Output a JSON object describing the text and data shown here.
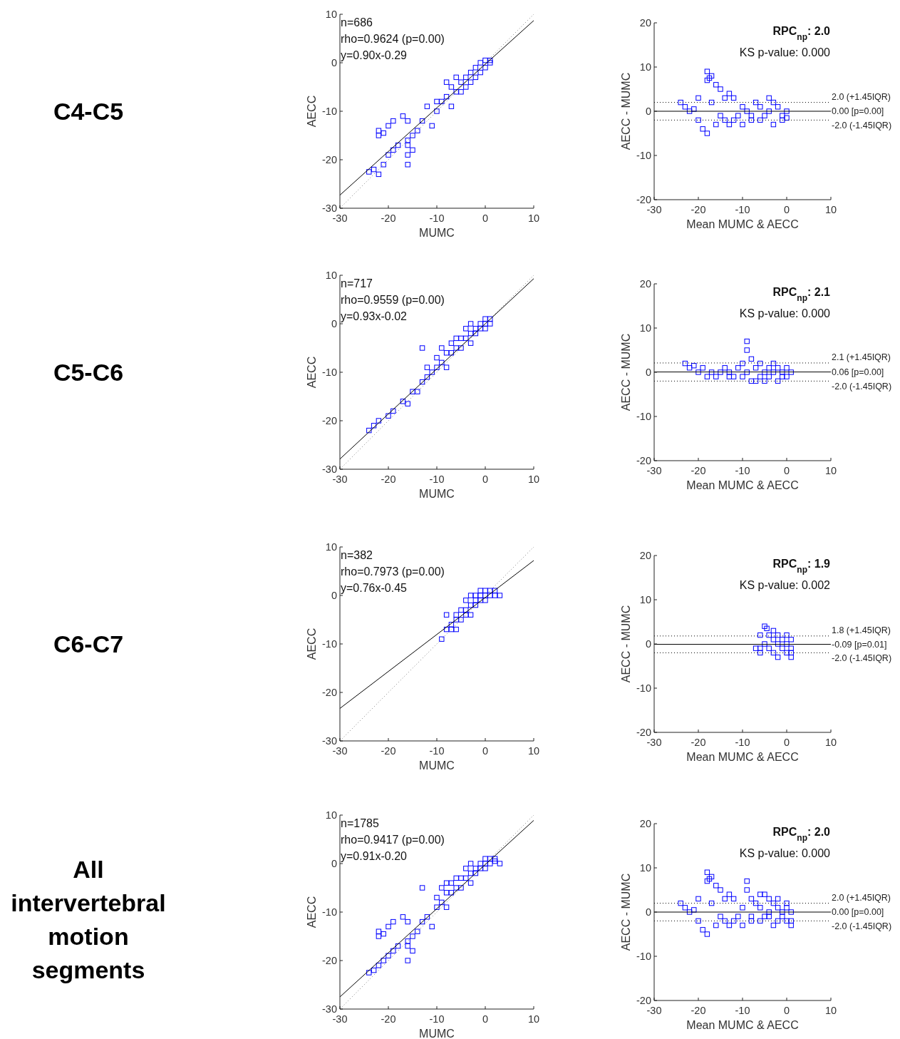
{
  "chart_data": [
    {
      "type": "other",
      "title": "C4-C5"
    },
    {
      "type": "scatter",
      "xlabel": "MUMC",
      "ylabel": "AECC",
      "xlim": [
        -30,
        10
      ],
      "ylim": [
        -30,
        10
      ],
      "xticks": [
        -30,
        -20,
        -10,
        0,
        10
      ],
      "yticks": [
        -30,
        -20,
        -10,
        0,
        10
      ],
      "annotations": [
        "n=686",
        "rho=0.9624 (p=0.00)",
        "y=0.90x-0.29"
      ],
      "series": [
        {
          "type": "scatter",
          "marker": "square",
          "color": "#0000ff",
          "x": [
            -23,
            -24,
            -22,
            -21,
            -20,
            -19,
            -18,
            -22,
            -22,
            -21,
            -20,
            -19,
            -17,
            -16,
            -15,
            -16,
            -16,
            -15,
            -16,
            -16,
            -14,
            -13,
            -11,
            -10,
            -9,
            -8,
            -7,
            -6,
            -5,
            -4,
            -3,
            -2,
            -1,
            0,
            1,
            -3,
            -5,
            -6,
            -8,
            -10,
            -12,
            -1,
            0,
            -2,
            -4,
            -7,
            1
          ],
          "values": [
            -22,
            -22.5,
            -23,
            -21,
            -19,
            -18,
            -17,
            -15,
            -14,
            -14.5,
            -13,
            -12,
            -11,
            -12,
            -15,
            -16,
            -17,
            -18,
            -19,
            -21,
            -14,
            -12,
            -13,
            -10,
            -8,
            -7,
            -9,
            -6,
            -4,
            -3,
            -2,
            -1,
            0,
            0.5,
            0,
            -4,
            -6,
            -3,
            -4,
            -8,
            -9,
            -2,
            -1,
            -3,
            -5,
            -5,
            0.5
          ]
        },
        {
          "type": "line",
          "color": "#000000",
          "line_style": "solid",
          "x": [
            -30,
            10
          ],
          "values": [
            -27.3,
            8.7
          ]
        },
        {
          "type": "line",
          "color": "#808080",
          "line_style": "dotted",
          "x": [
            -30,
            10
          ],
          "values": [
            -30,
            10
          ]
        }
      ]
    },
    {
      "type": "scatter",
      "xlabel": "Mean MUMC & AECC",
      "ylabel": "AECC - MUMC",
      "xlim": [
        -30,
        10
      ],
      "ylim": [
        -20,
        20
      ],
      "xticks": [
        -30,
        -20,
        -10,
        0,
        10
      ],
      "yticks": [
        -20,
        -10,
        0,
        10,
        20
      ],
      "annotations": [
        "RPC$_{np}$: 2.0",
        "KS p-value: 0.000"
      ],
      "ref_lines": [
        {
          "axis": "y",
          "value": 2.0,
          "label": "2.0 (+1.45IQR)",
          "line_style": "dotted",
          "color": "#000000"
        },
        {
          "axis": "y",
          "value": 0.0,
          "label": "0.00 [p=0.00]",
          "line_style": "solid",
          "color": "#000000"
        },
        {
          "axis": "y",
          "value": -2.0,
          "label": "-2.0 (-1.45IQR)",
          "line_style": "dotted",
          "color": "#000000"
        }
      ],
      "series": [
        {
          "type": "scatter",
          "marker": "square",
          "color": "#0000ff",
          "x": [
            -24,
            -23,
            -22,
            -21,
            -20,
            -19,
            -18,
            -18,
            -17.5,
            -18,
            -17,
            -16,
            -15,
            -14,
            -13,
            -12,
            -20,
            -17,
            -15,
            -14,
            -13,
            -12,
            -11,
            -10,
            -9,
            -8,
            -7,
            -6,
            -5,
            -4,
            -3,
            -2,
            -1,
            0,
            -1,
            -8,
            -6,
            -4,
            -3,
            0,
            -16,
            -10
          ],
          "values": [
            2,
            1,
            0,
            0.5,
            -2,
            -4,
            -5,
            7,
            7.5,
            9,
            8,
            6,
            5,
            3,
            4,
            3,
            3,
            2,
            -1,
            -2,
            -3,
            -2,
            -1,
            1,
            0,
            -1,
            2,
            1,
            -1,
            0,
            2,
            1,
            -1,
            0,
            -2,
            -2,
            -2,
            3,
            -3,
            -1.5,
            -3,
            -3
          ]
        }
      ]
    },
    {
      "type": "other",
      "title": "C5-C6"
    },
    {
      "type": "scatter",
      "xlabel": "MUMC",
      "ylabel": "AECC",
      "xlim": [
        -30,
        10
      ],
      "ylim": [
        -30,
        10
      ],
      "xticks": [
        -30,
        -20,
        -10,
        0,
        10
      ],
      "yticks": [
        -30,
        -20,
        -10,
        0,
        10
      ],
      "annotations": [
        "n=717",
        "rho=0.9559 (p=0.00)",
        "y=0.93x-0.02"
      ],
      "series": [
        {
          "type": "scatter",
          "marker": "square",
          "color": "#0000ff",
          "x": [
            -24,
            -23,
            -22,
            -20,
            -19,
            -17,
            -16,
            -15,
            -14,
            -13,
            -12,
            -12,
            -11,
            -10,
            -10,
            -9,
            -8,
            -8,
            -7,
            -6,
            -6,
            -5,
            -5,
            -4,
            -3,
            -3,
            -2,
            -2,
            -1,
            -1,
            0,
            0,
            1,
            1,
            -4,
            -7,
            -13,
            -9,
            -3,
            0
          ],
          "values": [
            -22,
            -21,
            -20,
            -19,
            -18,
            -16,
            -16.5,
            -14,
            -14,
            -12,
            -11,
            -9,
            -10,
            -9,
            -7,
            -8,
            -6,
            -9,
            -6,
            -5,
            -3,
            -5,
            -3,
            -3,
            -2,
            -4,
            -1,
            -2,
            0,
            -1,
            0,
            1,
            0,
            1,
            -1,
            -4,
            -5,
            -5,
            0,
            -1
          ]
        },
        {
          "type": "line",
          "color": "#000000",
          "line_style": "solid",
          "x": [
            -30,
            10
          ],
          "values": [
            -27.9,
            9.3
          ]
        },
        {
          "type": "line",
          "color": "#808080",
          "line_style": "dotted",
          "x": [
            -30,
            10
          ],
          "values": [
            -30,
            10
          ]
        }
      ]
    },
    {
      "type": "scatter",
      "xlabel": "Mean MUMC & AECC",
      "ylabel": "AECC - MUMC",
      "xlim": [
        -30,
        10
      ],
      "ylim": [
        -20,
        20
      ],
      "xticks": [
        -30,
        -20,
        -10,
        0,
        10
      ],
      "yticks": [
        -20,
        -10,
        0,
        10,
        20
      ],
      "annotations": [
        "RPC$_{np}$: 2.1",
        "KS p-value: 0.000"
      ],
      "ref_lines": [
        {
          "axis": "y",
          "value": 2.1,
          "label": "2.1 (+1.45IQR)",
          "line_style": "dotted",
          "color": "#000000"
        },
        {
          "axis": "y",
          "value": 0.06,
          "label": "0.06 [p=0.00]",
          "line_style": "solid",
          "color": "#000000"
        },
        {
          "axis": "y",
          "value": -2.0,
          "label": "-2.0 (-1.45IQR)",
          "line_style": "dotted",
          "color": "#000000"
        }
      ],
      "series": [
        {
          "type": "scatter",
          "marker": "square",
          "color": "#0000ff",
          "x": [
            -23,
            -22,
            -21,
            -20,
            -19,
            -18,
            -17,
            -16,
            -15,
            -14,
            -13,
            -12,
            -11,
            -10,
            -9,
            -9,
            -8,
            -9,
            -8,
            -7,
            -6,
            -6,
            -5,
            -5,
            -4,
            -4,
            -3,
            -3,
            -2,
            -2,
            -1,
            -1,
            0,
            0,
            1,
            -7,
            -10,
            -13
          ],
          "values": [
            2,
            1,
            1.5,
            0,
            1,
            -1,
            0,
            -1,
            0,
            1,
            0,
            -1,
            1,
            2,
            7,
            5,
            3,
            0,
            -2,
            1,
            -1,
            2,
            0,
            -2,
            1,
            -1,
            2,
            0,
            -2,
            1,
            0,
            -1,
            1,
            -1,
            0,
            -2,
            -1,
            -1
          ]
        }
      ]
    },
    {
      "type": "other",
      "title": "C6-C7"
    },
    {
      "type": "scatter",
      "xlabel": "MUMC",
      "ylabel": "AECC",
      "xlim": [
        -30,
        10
      ],
      "ylim": [
        -30,
        10
      ],
      "xticks": [
        -30,
        -20,
        -10,
        0,
        10
      ],
      "yticks": [
        -30,
        -20,
        -10,
        0,
        10
      ],
      "annotations": [
        "n=382",
        "rho=0.7973 (p=0.00)",
        "y=0.76x-0.45"
      ],
      "series": [
        {
          "type": "scatter",
          "marker": "square",
          "color": "#0000ff",
          "x": [
            -9,
            -8,
            -8,
            -7,
            -7,
            -6,
            -6,
            -5,
            -5,
            -4,
            -4,
            -3,
            -3,
            -2,
            -2,
            -1,
            -1,
            0,
            0,
            1,
            1,
            2,
            3,
            -6,
            -3,
            -2,
            0,
            -1,
            2,
            -4
          ],
          "values": [
            -9,
            -7,
            -4,
            -6,
            -7,
            -5,
            -4,
            -3,
            -5,
            -3,
            -1,
            -2,
            -4,
            -1,
            0,
            0,
            -1,
            0,
            1,
            0,
            1,
            0,
            0,
            -7,
            0,
            -2,
            -1,
            1,
            1,
            -4
          ]
        },
        {
          "type": "line",
          "color": "#000000",
          "line_style": "solid",
          "x": [
            -30,
            10
          ],
          "values": [
            -23.3,
            7.2
          ]
        },
        {
          "type": "line",
          "color": "#808080",
          "line_style": "dotted",
          "x": [
            -30,
            10
          ],
          "values": [
            -30,
            10
          ]
        }
      ]
    },
    {
      "type": "scatter",
      "xlabel": "Mean MUMC & AECC",
      "ylabel": "AECC - MUMC",
      "xlim": [
        -30,
        10
      ],
      "ylim": [
        -20,
        20
      ],
      "xticks": [
        -30,
        -20,
        -10,
        0,
        10
      ],
      "yticks": [
        -20,
        -10,
        0,
        10,
        20
      ],
      "annotations": [
        "RPC$_{np}$: 1.9",
        "KS p-value: 0.002"
      ],
      "ref_lines": [
        {
          "axis": "y",
          "value": 1.8,
          "label": "1.8 (+1.45IQR)",
          "line_style": "dotted",
          "color": "#000000"
        },
        {
          "axis": "y",
          "value": -0.09,
          "label": "-0.09 [p=0.01]",
          "line_style": "solid",
          "color": "#000000"
        },
        {
          "axis": "y",
          "value": -2.0,
          "label": "-2.0 (-1.45IQR)",
          "line_style": "dotted",
          "color": "#000000"
        }
      ],
      "series": [
        {
          "type": "scatter",
          "marker": "square",
          "color": "#0000ff",
          "x": [
            -7,
            -6,
            -6,
            -5,
            -4.5,
            -5,
            -4,
            -4,
            -3,
            -3,
            -2,
            -2,
            -1,
            -1,
            0,
            0,
            1,
            1,
            1,
            -3,
            -6,
            -2,
            0,
            1
          ],
          "values": [
            -1,
            2,
            -2,
            4,
            3.5,
            0,
            2,
            -1,
            1,
            -2,
            0,
            2,
            1,
            -1,
            0,
            -2,
            -1,
            -3,
            1,
            3,
            -1,
            -3,
            2,
            -2
          ]
        }
      ]
    },
    {
      "type": "other",
      "title": "All intervertebral motion segments"
    },
    {
      "type": "scatter",
      "xlabel": "MUMC",
      "ylabel": "AECC",
      "xlim": [
        -30,
        10
      ],
      "ylim": [
        -30,
        10
      ],
      "xticks": [
        -30,
        -20,
        -10,
        0,
        10
      ],
      "yticks": [
        -30,
        -20,
        -10,
        0,
        10
      ],
      "annotations": [
        "n=1785",
        "rho=0.9417 (p=0.00)",
        "y=0.91x-0.20"
      ],
      "series": [
        {
          "type": "scatter",
          "marker": "square",
          "color": "#0000ff",
          "x": [
            -24,
            -23,
            -22,
            -21,
            -20,
            -19,
            -18,
            -22,
            -22,
            -21,
            -20,
            -19,
            -17,
            -16,
            -15,
            -16,
            -16,
            -15,
            -16,
            -14,
            -13,
            -12,
            -11,
            -10,
            -10,
            -9,
            -8,
            -8,
            -7,
            -6,
            -6,
            -5,
            -5,
            -4,
            -3,
            -3,
            -2,
            -2,
            -1,
            -1,
            0,
            0,
            1,
            1,
            2,
            3,
            -4,
            -7,
            -9,
            -13,
            -8,
            -3,
            0,
            2
          ],
          "values": [
            -22.5,
            -22,
            -21,
            -20,
            -19,
            -18,
            -17,
            -15,
            -14,
            -14.5,
            -13,
            -12,
            -11,
            -12,
            -15,
            -16,
            -17,
            -18,
            -20,
            -14,
            -12,
            -11,
            -13,
            -9,
            -7,
            -8,
            -6,
            -9,
            -6,
            -5,
            -3,
            -5,
            -3,
            -3,
            -2,
            -4,
            -1,
            -2,
            0,
            -1,
            0,
            1,
            0,
            1,
            0.5,
            0,
            -1,
            -4,
            -5,
            -5,
            -4,
            0,
            -1,
            1
          ]
        },
        {
          "type": "line",
          "color": "#000000",
          "line_style": "solid",
          "x": [
            -30,
            10
          ],
          "values": [
            -27.5,
            8.9
          ]
        },
        {
          "type": "line",
          "color": "#808080",
          "line_style": "dotted",
          "x": [
            -30,
            10
          ],
          "values": [
            -30,
            10
          ]
        }
      ]
    },
    {
      "type": "scatter",
      "xlabel": "Mean MUMC & AECC",
      "ylabel": "AECC - MUMC",
      "xlim": [
        -30,
        10
      ],
      "ylim": [
        -20,
        20
      ],
      "xticks": [
        -30,
        -20,
        -10,
        0,
        10
      ],
      "yticks": [
        -20,
        -10,
        0,
        10,
        20
      ],
      "annotations": [
        "RPC$_{np}$: 2.0",
        "KS p-value: 0.000"
      ],
      "ref_lines": [
        {
          "axis": "y",
          "value": 2.0,
          "label": "2.0 (+1.45IQR)",
          "line_style": "dotted",
          "color": "#000000"
        },
        {
          "axis": "y",
          "value": 0.0,
          "label": "0.00 [p=0.00]",
          "line_style": "solid",
          "color": "#000000"
        },
        {
          "axis": "y",
          "value": -2.0,
          "label": "-2.0 (-1.45IQR)",
          "line_style": "dotted",
          "color": "#000000"
        }
      ],
      "series": [
        {
          "type": "scatter",
          "marker": "square",
          "color": "#0000ff",
          "x": [
            -24,
            -23,
            -22,
            -21,
            -20,
            -19,
            -18,
            -18,
            -17.5,
            -18,
            -17,
            -16,
            -15,
            -14,
            -13,
            -12,
            -20,
            -17,
            -15,
            -14,
            -13,
            -12,
            -11,
            -10,
            -9,
            -9,
            -8,
            -8,
            -7,
            -6,
            -6,
            -5,
            -5,
            -4,
            -4,
            -3,
            -3,
            -2,
            -2,
            -1,
            -1,
            0,
            0,
            1,
            1,
            -8,
            -10,
            -16,
            -6,
            -4,
            -2,
            0,
            1
          ],
          "values": [
            2,
            1,
            0,
            0.5,
            -2,
            -4,
            -5,
            7,
            7.5,
            9,
            8,
            6,
            5,
            3,
            4,
            3,
            3,
            2,
            -1,
            -2,
            -3,
            -2,
            -1,
            1,
            7,
            5,
            3,
            -2,
            2,
            1,
            -2,
            4,
            -1,
            3,
            0,
            2,
            -3,
            1,
            -2,
            0,
            -1,
            1,
            -2,
            0,
            -3,
            -1,
            -3,
            -3,
            4,
            -1,
            3,
            2,
            -2
          ]
        }
      ]
    }
  ]
}
